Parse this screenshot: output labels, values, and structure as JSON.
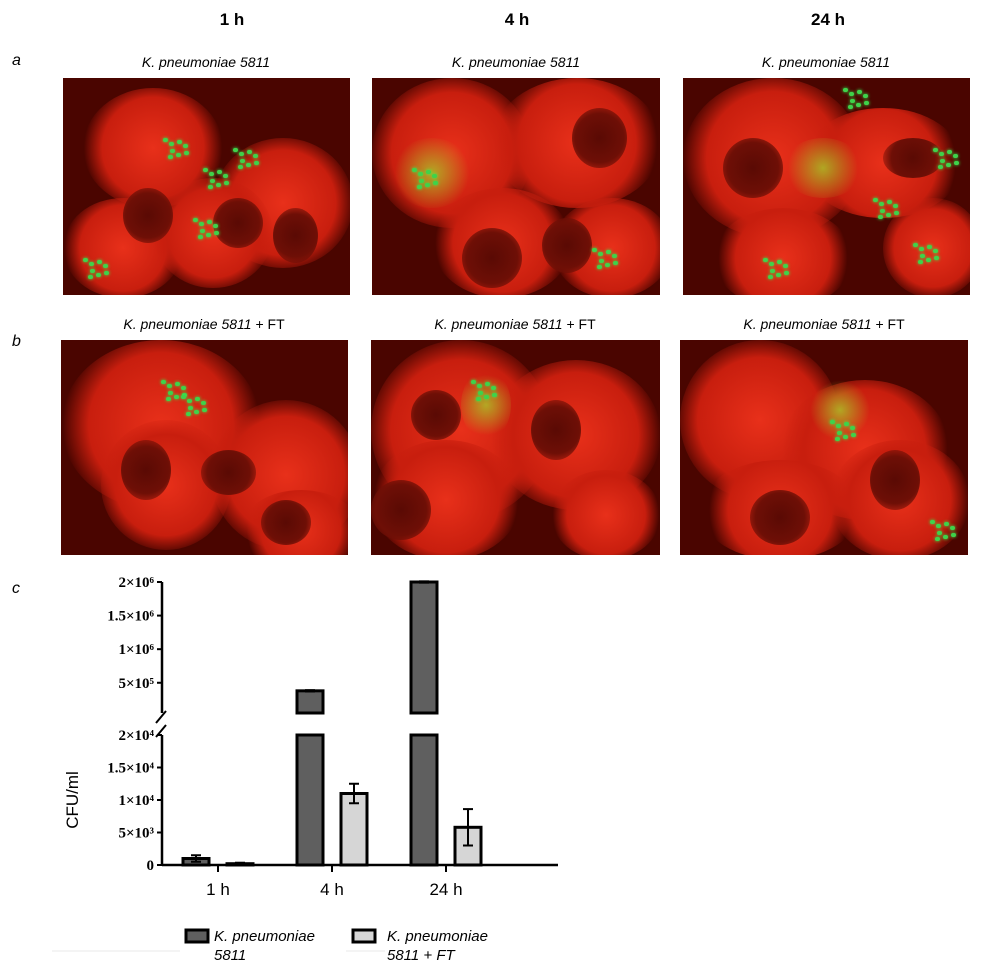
{
  "columns": [
    "1 h",
    "4 h",
    "24 h"
  ],
  "panels": {
    "a": "a",
    "b": "b",
    "c": "c"
  },
  "row_a_captions": [
    "K. pneumoniae 5811",
    "K. pneumoniae 5811",
    "K. pneumoniae 5811"
  ],
  "row_b_captions": [
    {
      "strain": "K. pneumoniae 5811",
      "suffix": " + FT"
    },
    {
      "strain": "K. pneumoniae 5811",
      "suffix": " + FT"
    },
    {
      "strain": "K. pneumoniae 5811",
      "suffix": " + FT"
    }
  ],
  "colors": {
    "cytoplasm": "#d4220f",
    "bacteria": "#3fd24a",
    "series1": "#5f5f5f",
    "series2": "#d6d6d6"
  },
  "chart_data": {
    "type": "bar",
    "categories": [
      "1 h",
      "4 h",
      "24 h"
    ],
    "ylabel": "CFU/ml",
    "axis_break": true,
    "ylim_lower": [
      0,
      20000
    ],
    "ylim_upper": [
      50000,
      2000000
    ],
    "yticks_lower": [
      {
        "v": 0,
        "label": "0"
      },
      {
        "v": 5000,
        "label": "5×10³"
      },
      {
        "v": 10000,
        "label": "1×10⁴"
      },
      {
        "v": 15000,
        "label": "1.5×10⁴"
      },
      {
        "v": 20000,
        "label": "2×10⁴"
      }
    ],
    "yticks_upper": [
      {
        "v": 500000,
        "label": "5×10⁵"
      },
      {
        "v": 1000000,
        "label": "1×10⁶"
      },
      {
        "v": 1500000,
        "label": "1.5×10⁶"
      },
      {
        "v": 2000000,
        "label": "2×10⁶"
      }
    ],
    "series": [
      {
        "name": "K. pneumoniae 5811",
        "legend": [
          "K. pneumoniae",
          "5811"
        ],
        "values": [
          1000,
          380000,
          2000000
        ],
        "errors": [
          500,
          10000,
          10000
        ]
      },
      {
        "name": "K. pneumoniae 5811 + FT",
        "legend": [
          "K. pneumoniae",
          "5811 + FT"
        ],
        "values": [
          200,
          11000,
          5800
        ],
        "errors": [
          150,
          1500,
          2800
        ]
      }
    ],
    "legend_position": "bottom"
  }
}
